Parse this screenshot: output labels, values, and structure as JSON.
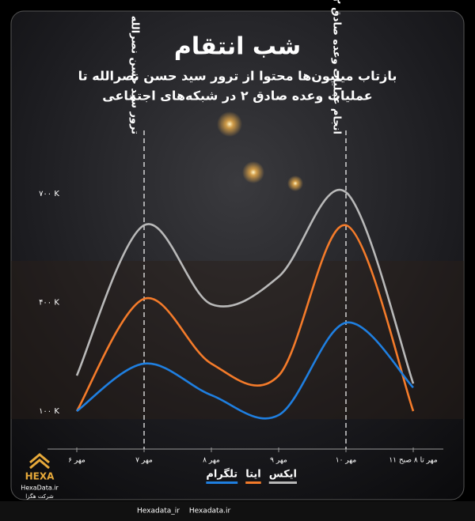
{
  "chart_data": {
    "type": "line",
    "title": "شب انتقام",
    "subtitle": [
      "بازتاب میلیون‌ها محتوا از ترور سید حسن نصرالله تا",
      "عملیات وعده صادق ۲ در شبکه‌های اجتماعی"
    ],
    "categories": [
      "۶ مهر",
      "۷ مهر",
      "۸ مهر",
      "۹ مهر",
      "۱۰ مهر",
      "۱۱ مهر تا ۸ صبح"
    ],
    "series": [
      {
        "name": "ایکس",
        "color": "#b9b9b9",
        "values": [
          198,
          613,
          395,
          471,
          704,
          176
        ]
      },
      {
        "name": "ایتا",
        "color": "#f47b2a",
        "values": [
          100,
          410,
          231,
          198,
          613,
          100
        ]
      },
      {
        "name": "تلگرام",
        "color": "#1f7fe0",
        "values": [
          100,
          231,
          144,
          89,
          344,
          165
        ]
      }
    ],
    "ylim": [
      100,
      700
    ],
    "yticks": [
      {
        "value": 100,
        "label": "۱۰۰ K"
      },
      {
        "value": 400,
        "label": "۴۰۰ K"
      },
      {
        "value": 700,
        "label": "۷۰۰ K"
      }
    ],
    "annotations": [
      {
        "category": 1,
        "text": "ترور سید حسن نصرالله"
      },
      {
        "category": 4,
        "text": "انجام عملیات وعده صادق ۲"
      }
    ]
  },
  "brand": {
    "name": "HEXA",
    "site": "HexaData.ir",
    "company": "شرکت هگزا"
  },
  "footer": {
    "site": "Hexadata.ir",
    "handle": "Hexadata_ir"
  }
}
